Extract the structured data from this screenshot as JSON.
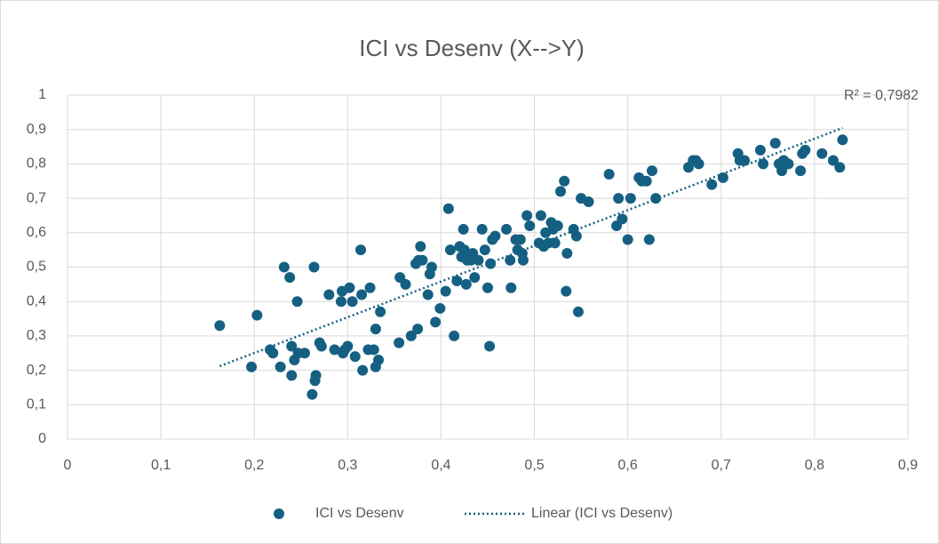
{
  "chart_data": {
    "type": "scatter",
    "title": "ICI vs Desenv (X-->Y)",
    "trendline_label": "R² = 0,7982",
    "trendline_name": "Linear (ICI vs Desenv)",
    "grid": true,
    "legend": "bottom",
    "xlim": [
      0,
      0.9
    ],
    "ylim": [
      0,
      1
    ],
    "xticks": [
      0,
      {
        "value": 0.1,
        "label": "0,1"
      },
      {
        "value": 0.2,
        "label": "0,2"
      },
      {
        "value": 0.3,
        "label": "0,3"
      },
      {
        "value": 0.4,
        "label": "0,4"
      },
      {
        "value": 0.5,
        "label": "0,5"
      },
      {
        "value": 0.6,
        "label": "0,6"
      },
      {
        "value": 0.7,
        "label": "0,7"
      },
      {
        "value": 0.8,
        "label": "0,8"
      },
      {
        "value": 0.9,
        "label": "0,9"
      }
    ],
    "yticks": [
      0,
      {
        "value": 0.1,
        "label": "0,1"
      },
      {
        "value": 0.2,
        "label": "0,2"
      },
      {
        "value": 0.3,
        "label": "0,3"
      },
      {
        "value": 0.4,
        "label": "0,4"
      },
      {
        "value": 0.5,
        "label": "0,5"
      },
      {
        "value": 0.6,
        "label": "0,6"
      },
      {
        "value": 0.7,
        "label": "0,7"
      },
      {
        "value": 0.8,
        "label": "0,8"
      },
      {
        "value": 0.9,
        "label": "0,9"
      },
      1
    ],
    "x": [
      0.163,
      0.197,
      0.203,
      0.217,
      0.22,
      0.228,
      0.232,
      0.238,
      0.24,
      0.24,
      0.243,
      0.246,
      0.247,
      0.254,
      0.262,
      0.264,
      0.265,
      0.266,
      0.27,
      0.272,
      0.28,
      0.286,
      0.293,
      0.294,
      0.295,
      0.297,
      0.3,
      0.302,
      0.305,
      0.308,
      0.314,
      0.315,
      0.316,
      0.322,
      0.324,
      0.328,
      0.33,
      0.33,
      0.333,
      0.335,
      0.355,
      0.356,
      0.362,
      0.368,
      0.373,
      0.375,
      0.376,
      0.378,
      0.38,
      0.386,
      0.388,
      0.39,
      0.394,
      0.399,
      0.405,
      0.408,
      0.41,
      0.414,
      0.417,
      0.42,
      0.422,
      0.424,
      0.425,
      0.427,
      0.428,
      0.43,
      0.432,
      0.434,
      0.436,
      0.44,
      0.444,
      0.447,
      0.45,
      0.452,
      0.453,
      0.455,
      0.458,
      0.47,
      0.474,
      0.475,
      0.48,
      0.482,
      0.485,
      0.487,
      0.488,
      0.492,
      0.495,
      0.505,
      0.507,
      0.51,
      0.512,
      0.515,
      0.518,
      0.52,
      0.522,
      0.525,
      0.528,
      0.532,
      0.534,
      0.535,
      0.542,
      0.545,
      0.547,
      0.55,
      0.558,
      0.58,
      0.588,
      0.59,
      0.594,
      0.6,
      0.603,
      0.612,
      0.615,
      0.62,
      0.623,
      0.626,
      0.63,
      0.665,
      0.67,
      0.673,
      0.676,
      0.69,
      0.702,
      0.718,
      0.72,
      0.725,
      0.742,
      0.745,
      0.758,
      0.762,
      0.765,
      0.767,
      0.772,
      0.785,
      0.787,
      0.79,
      0.808,
      0.82,
      0.827,
      0.83
    ],
    "series": [
      {
        "name": "ICI vs Desenv",
        "color": "#156082",
        "values": [
          0.33,
          0.21,
          0.36,
          0.26,
          0.25,
          0.21,
          0.5,
          0.47,
          0.27,
          0.185,
          0.23,
          0.4,
          0.25,
          0.25,
          0.13,
          0.5,
          0.17,
          0.185,
          0.28,
          0.27,
          0.42,
          0.26,
          0.4,
          0.43,
          0.25,
          0.26,
          0.27,
          0.44,
          0.4,
          0.24,
          0.55,
          0.42,
          0.2,
          0.26,
          0.44,
          0.26,
          0.32,
          0.21,
          0.23,
          0.37,
          0.28,
          0.47,
          0.45,
          0.3,
          0.51,
          0.32,
          0.52,
          0.56,
          0.52,
          0.42,
          0.48,
          0.5,
          0.34,
          0.38,
          0.43,
          0.67,
          0.55,
          0.3,
          0.46,
          0.56,
          0.53,
          0.61,
          0.55,
          0.45,
          0.52,
          0.53,
          0.52,
          0.54,
          0.47,
          0.52,
          0.61,
          0.55,
          0.44,
          0.27,
          0.51,
          0.58,
          0.59,
          0.61,
          0.52,
          0.44,
          0.58,
          0.55,
          0.58,
          0.54,
          0.52,
          0.65,
          0.62,
          0.57,
          0.65,
          0.56,
          0.6,
          0.57,
          0.63,
          0.61,
          0.57,
          0.62,
          0.72,
          0.75,
          0.43,
          0.54,
          0.61,
          0.59,
          0.37,
          0.7,
          0.69,
          0.77,
          0.62,
          0.7,
          0.64,
          0.58,
          0.7,
          0.76,
          0.75,
          0.75,
          0.58,
          0.78,
          0.7,
          0.79,
          0.81,
          0.81,
          0.8,
          0.74,
          0.76,
          0.83,
          0.81,
          0.81,
          0.84,
          0.8,
          0.86,
          0.8,
          0.78,
          0.81,
          0.8,
          0.78,
          0.83,
          0.84,
          0.83,
          0.81,
          0.79,
          0.87
        ]
      }
    ]
  }
}
